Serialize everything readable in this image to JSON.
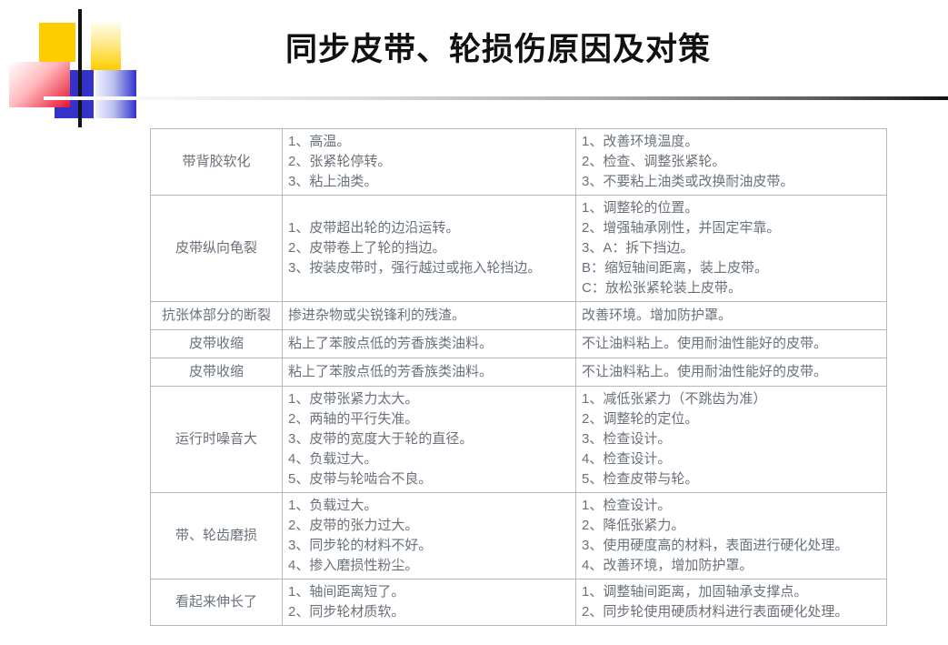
{
  "slide": {
    "title": "同步皮带、轮损伤原因及对策"
  },
  "decoration": {
    "colors": {
      "yellow": "#FFCC00",
      "blue": "#3333CC",
      "red": "#E8112D",
      "line_dark": "#111111"
    }
  },
  "table": {
    "rows": [
      {
        "failure": "带背胶软化",
        "causes": [
          "1、高温。",
          "2、张紧轮停转。",
          "3、粘上油类。"
        ],
        "actions": [
          "1、改善环境温度。",
          "2、检查、调整张紧轮。",
          "3、不要粘上油类或改换耐油皮带。"
        ]
      },
      {
        "failure": "皮带纵向龟裂",
        "causes": [
          "1、皮带超出轮的边沿运转。",
          "2、皮带卷上了轮的挡边。",
          "3、按装皮带时，强行越过或拖入轮挡边。"
        ],
        "actions": [
          "1、调整轮的位置。",
          "2、增强轴承刚性，并固定牢靠。",
          "3、A：拆下挡边。",
          "B：缩短轴间距离，装上皮带。",
          "C：放松张紧轮装上皮带。"
        ]
      },
      {
        "failure": "抗张体部分的断裂",
        "causes": [
          "掺进杂物或尖锐锋利的残渣。"
        ],
        "actions": [
          "改善环境。增加防护罩。"
        ]
      },
      {
        "failure": "皮带收缩",
        "causes": [
          "粘上了苯胺点低的芳香族类油料。"
        ],
        "actions": [
          "不让油料粘上。使用耐油性能好的皮带。"
        ]
      },
      {
        "failure": "皮带收缩",
        "causes": [
          "粘上了苯胺点低的芳香族类油料。"
        ],
        "actions": [
          "不让油料粘上。使用耐油性能好的皮带。"
        ]
      },
      {
        "failure": "运行时噪音大",
        "causes": [
          "1、皮带张紧力太大。",
          "2、两轴的平行失准。",
          "3、皮带的宽度大于轮的直径。",
          "4、负载过大。",
          "5、皮带与轮啮合不良。"
        ],
        "actions": [
          "1、减低张紧力（不跳齿为准）",
          "2、调整轮的定位。",
          "3、检查设计。",
          "4、检查设计。",
          "5、检查皮带与轮。"
        ]
      },
      {
        "failure": "带、轮齿磨损",
        "causes": [
          "1、负载过大。",
          "2、皮带的张力过大。",
          "3、同步轮的材料不好。",
          "4、掺入磨损性粉尘。"
        ],
        "actions": [
          "1、检查设计。",
          "2、降低张紧力。",
          "3、使用硬度高的材料，表面进行硬化处理。",
          "4、改善环境，增加防护罩。"
        ]
      },
      {
        "failure": "看起来伸长了",
        "causes": [
          "1、轴间距离短了。",
          "2、同步轮材质软。"
        ],
        "actions": [
          "1、调整轴间距离，加固轴承支撑点。",
          "2、同步轮使用硬质材料进行表面硬化处理。"
        ]
      }
    ]
  }
}
